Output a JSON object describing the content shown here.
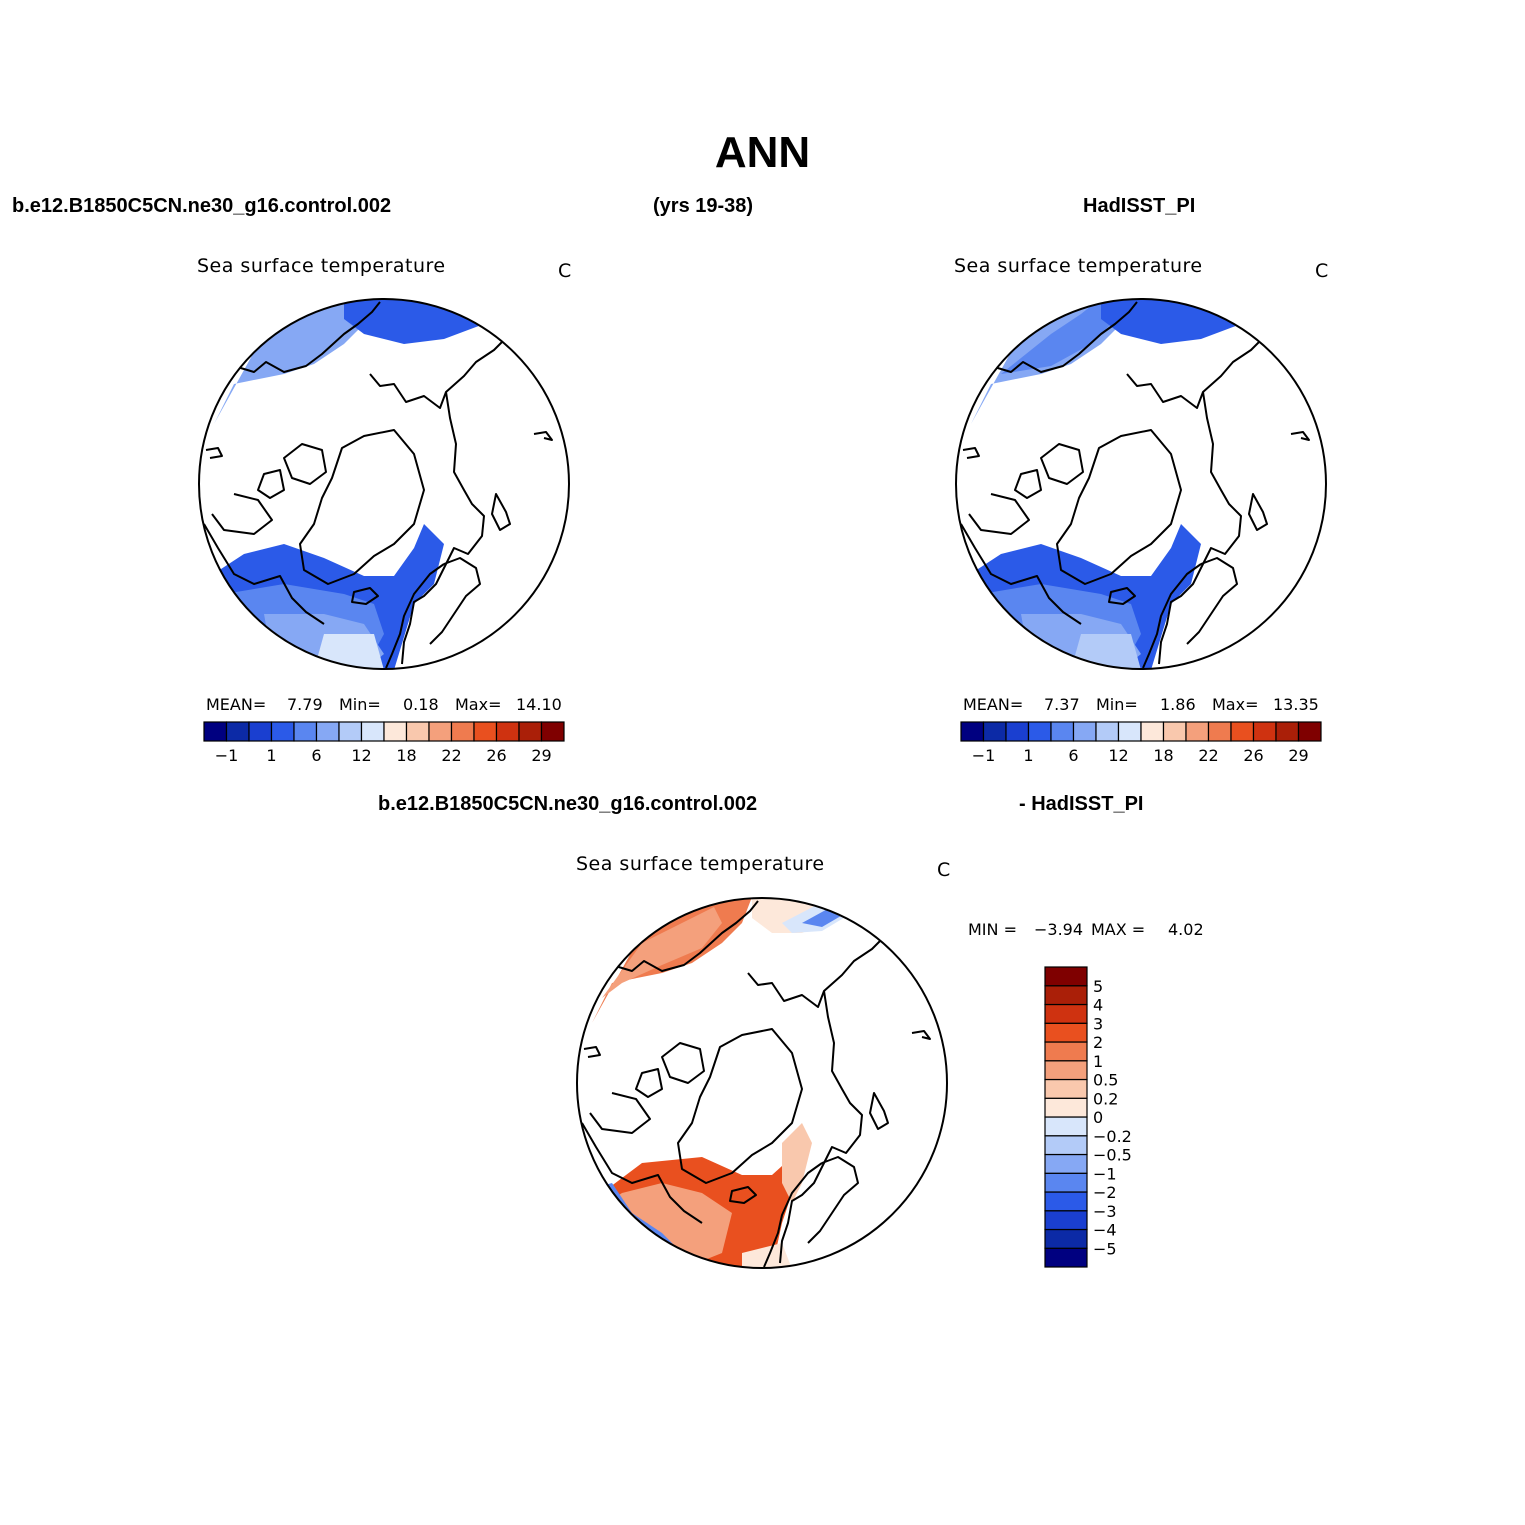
{
  "page": {
    "title": "ANN",
    "left_case": "b.e12.B1850C5CN.ne30_g16.control.002",
    "years": "(yrs 19-38)",
    "right_case": "HadISST_PI",
    "diff_case_a": "b.e12.B1850C5CN.ne30_g16.control.002",
    "diff_case_b": "- HadISST_PI"
  },
  "panels": [
    {
      "id": "model",
      "variable": "Sea surface temperature",
      "units": "C",
      "mean_label": "MEAN=",
      "mean": "7.79",
      "min_label": "Min=",
      "min": "0.18",
      "max_label": "Max=",
      "max": "14.10"
    },
    {
      "id": "obs",
      "variable": "Sea surface temperature",
      "units": "C",
      "mean_label": "MEAN=",
      "mean": "7.37",
      "min_label": "Min=",
      "min": "1.86",
      "max_label": "Max=",
      "max": "13.35"
    },
    {
      "id": "diff",
      "variable": "Sea surface temperature",
      "units": "C",
      "min_label": "MIN =",
      "min": "−3.94",
      "max_label": "MAX =",
      "max": "4.02"
    }
  ],
  "colorbar_abs": {
    "colors": [
      "#000080",
      "#0c2aa6",
      "#1a3fd0",
      "#2b5ae8",
      "#5a86f0",
      "#86a8f4",
      "#b3cbf8",
      "#d8e6fb",
      "#fde8da",
      "#f9c8ad",
      "#f4a07c",
      "#ef7b4f",
      "#e9501f",
      "#cf3210",
      "#aa1f08",
      "#7f0000"
    ],
    "tick_labels": [
      "−1",
      "1",
      "6",
      "12",
      "18",
      "22",
      "26",
      "29"
    ]
  },
  "colorbar_diff": {
    "colors": [
      "#000080",
      "#0c2aa6",
      "#1a3fd0",
      "#2b5ae8",
      "#5a86f0",
      "#86a8f4",
      "#b3cbf8",
      "#d8e6fb",
      "#fde8da",
      "#f9c8ad",
      "#f4a07c",
      "#ef7b4f",
      "#e9501f",
      "#cf3210",
      "#aa1f08",
      "#7f0000"
    ],
    "tick_labels": [
      "5",
      "4",
      "3",
      "2",
      "1",
      "0.5",
      "0.2",
      "0",
      "−0.2",
      "−0.5",
      "−1",
      "−2",
      "−3",
      "−4",
      "−5"
    ]
  },
  "map_colors": {
    "blue_dark": "#2b5ae8",
    "blue_mid": "#5a86f0",
    "blue_light": "#86a8f4",
    "blue_pale": "#b3cbf8",
    "blue_faint": "#d8e6fb",
    "red_dark": "#e9501f",
    "red_mid": "#ef7b4f",
    "red_light": "#f4a07c",
    "red_pale": "#f9c8ad",
    "red_faint": "#fde8da"
  }
}
